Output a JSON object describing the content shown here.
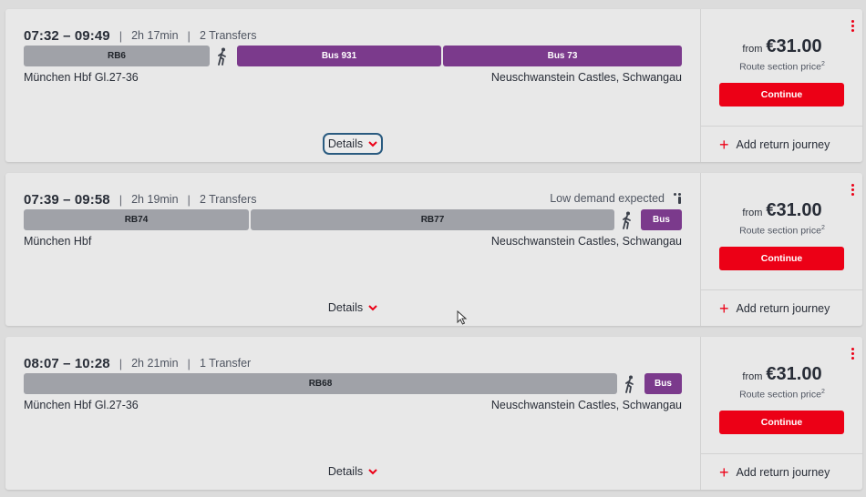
{
  "common": {
    "details_label": "Details",
    "from_label": "from",
    "route_section_price": "Route section price",
    "route_price_note": "2",
    "continue_label": "Continue",
    "return_label": "Add return journey"
  },
  "journeys": [
    {
      "times": "07:32 – 09:49",
      "duration": "2h 17min",
      "transfers": "2 Transfers",
      "demand": "",
      "origin": "München Hbf Gl.27-36",
      "destination": "Neuschwanstein Castles, Schwangau",
      "price": "€31.00",
      "segments": [
        {
          "type": "train",
          "label": "RB6"
        },
        {
          "type": "walk",
          "label": ""
        },
        {
          "type": "bus",
          "label": "Bus 931"
        },
        {
          "type": "bus",
          "label": "Bus 73"
        }
      ]
    },
    {
      "times": "07:39 – 09:58",
      "duration": "2h 19min",
      "transfers": "2 Transfers",
      "demand": "Low demand expected",
      "origin": "München Hbf",
      "destination": "Neuschwanstein Castles, Schwangau",
      "price": "€31.00",
      "segments": [
        {
          "type": "train",
          "label": "RB74"
        },
        {
          "type": "train",
          "label": "RB77"
        },
        {
          "type": "walk",
          "label": ""
        },
        {
          "type": "bus",
          "label": "Bus"
        }
      ]
    },
    {
      "times": "08:07 – 10:28",
      "duration": "2h 21min",
      "transfers": "1 Transfer",
      "demand": "",
      "origin": "München Hbf Gl.27-36",
      "destination": "Neuschwanstein Castles, Schwangau",
      "price": "€31.00",
      "segments": [
        {
          "type": "train",
          "label": "RB68"
        },
        {
          "type": "walk",
          "label": ""
        },
        {
          "type": "bus",
          "label": "Bus"
        }
      ]
    }
  ],
  "colors": {
    "accent_red": "#ec0016",
    "bus_purple": "#7b3a8c",
    "train_grey": "#a0a2a8",
    "focus_ring": "#2a5b80"
  }
}
